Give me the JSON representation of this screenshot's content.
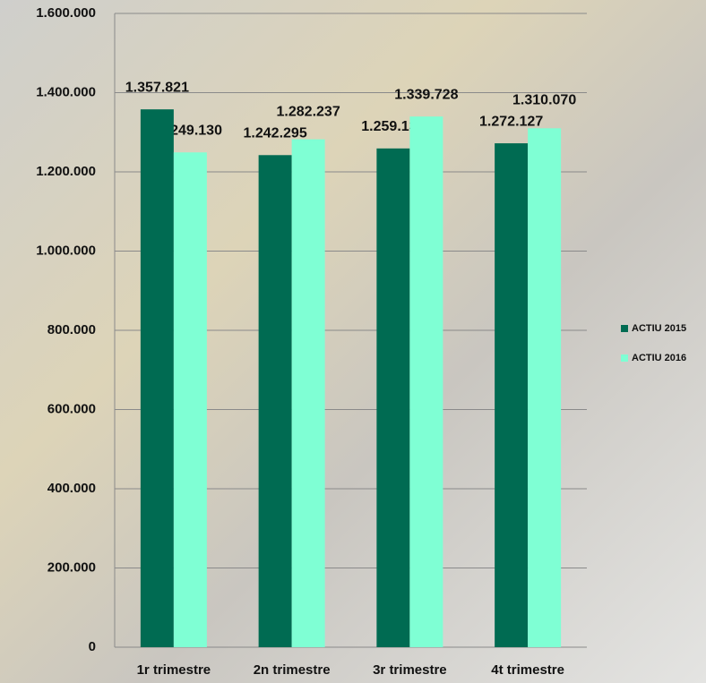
{
  "chart_data": {
    "type": "bar",
    "categories": [
      "1r trimestre",
      "2n trimestre",
      "3r trimestre",
      "4t trimestre"
    ],
    "series": [
      {
        "name": "ACTIU 2015",
        "color": "#006b52",
        "values": [
          1357821,
          1242295,
          1259136,
          1272127
        ],
        "value_labels": [
          "1.357.821",
          "1.242.295",
          "1.259.136",
          "1.272.127"
        ]
      },
      {
        "name": "ACTIU 2016",
        "color": "#7fffd4",
        "values": [
          1249130,
          1282237,
          1339728,
          1310070
        ],
        "value_labels": [
          "1.249.130",
          "1.282.237",
          "1.339.728",
          "1.310.070"
        ]
      }
    ],
    "ylim": [
      0,
      1600000
    ],
    "yticks": [
      0,
      {
        "value": 200000,
        "label": "200.000"
      },
      {
        "value": 400000,
        "label": "400.000"
      },
      {
        "value": 600000,
        "label": "600.000"
      },
      {
        "value": 800000,
        "label": "800.000"
      },
      {
        "value": 1000000,
        "label": "1.000.000"
      },
      {
        "value": 1200000,
        "label": "1.200.000"
      },
      {
        "value": 1400000,
        "label": "1.400.000"
      },
      {
        "value": 1600000,
        "label": "1.600.000"
      }
    ],
    "grid": true,
    "legend": "right"
  }
}
